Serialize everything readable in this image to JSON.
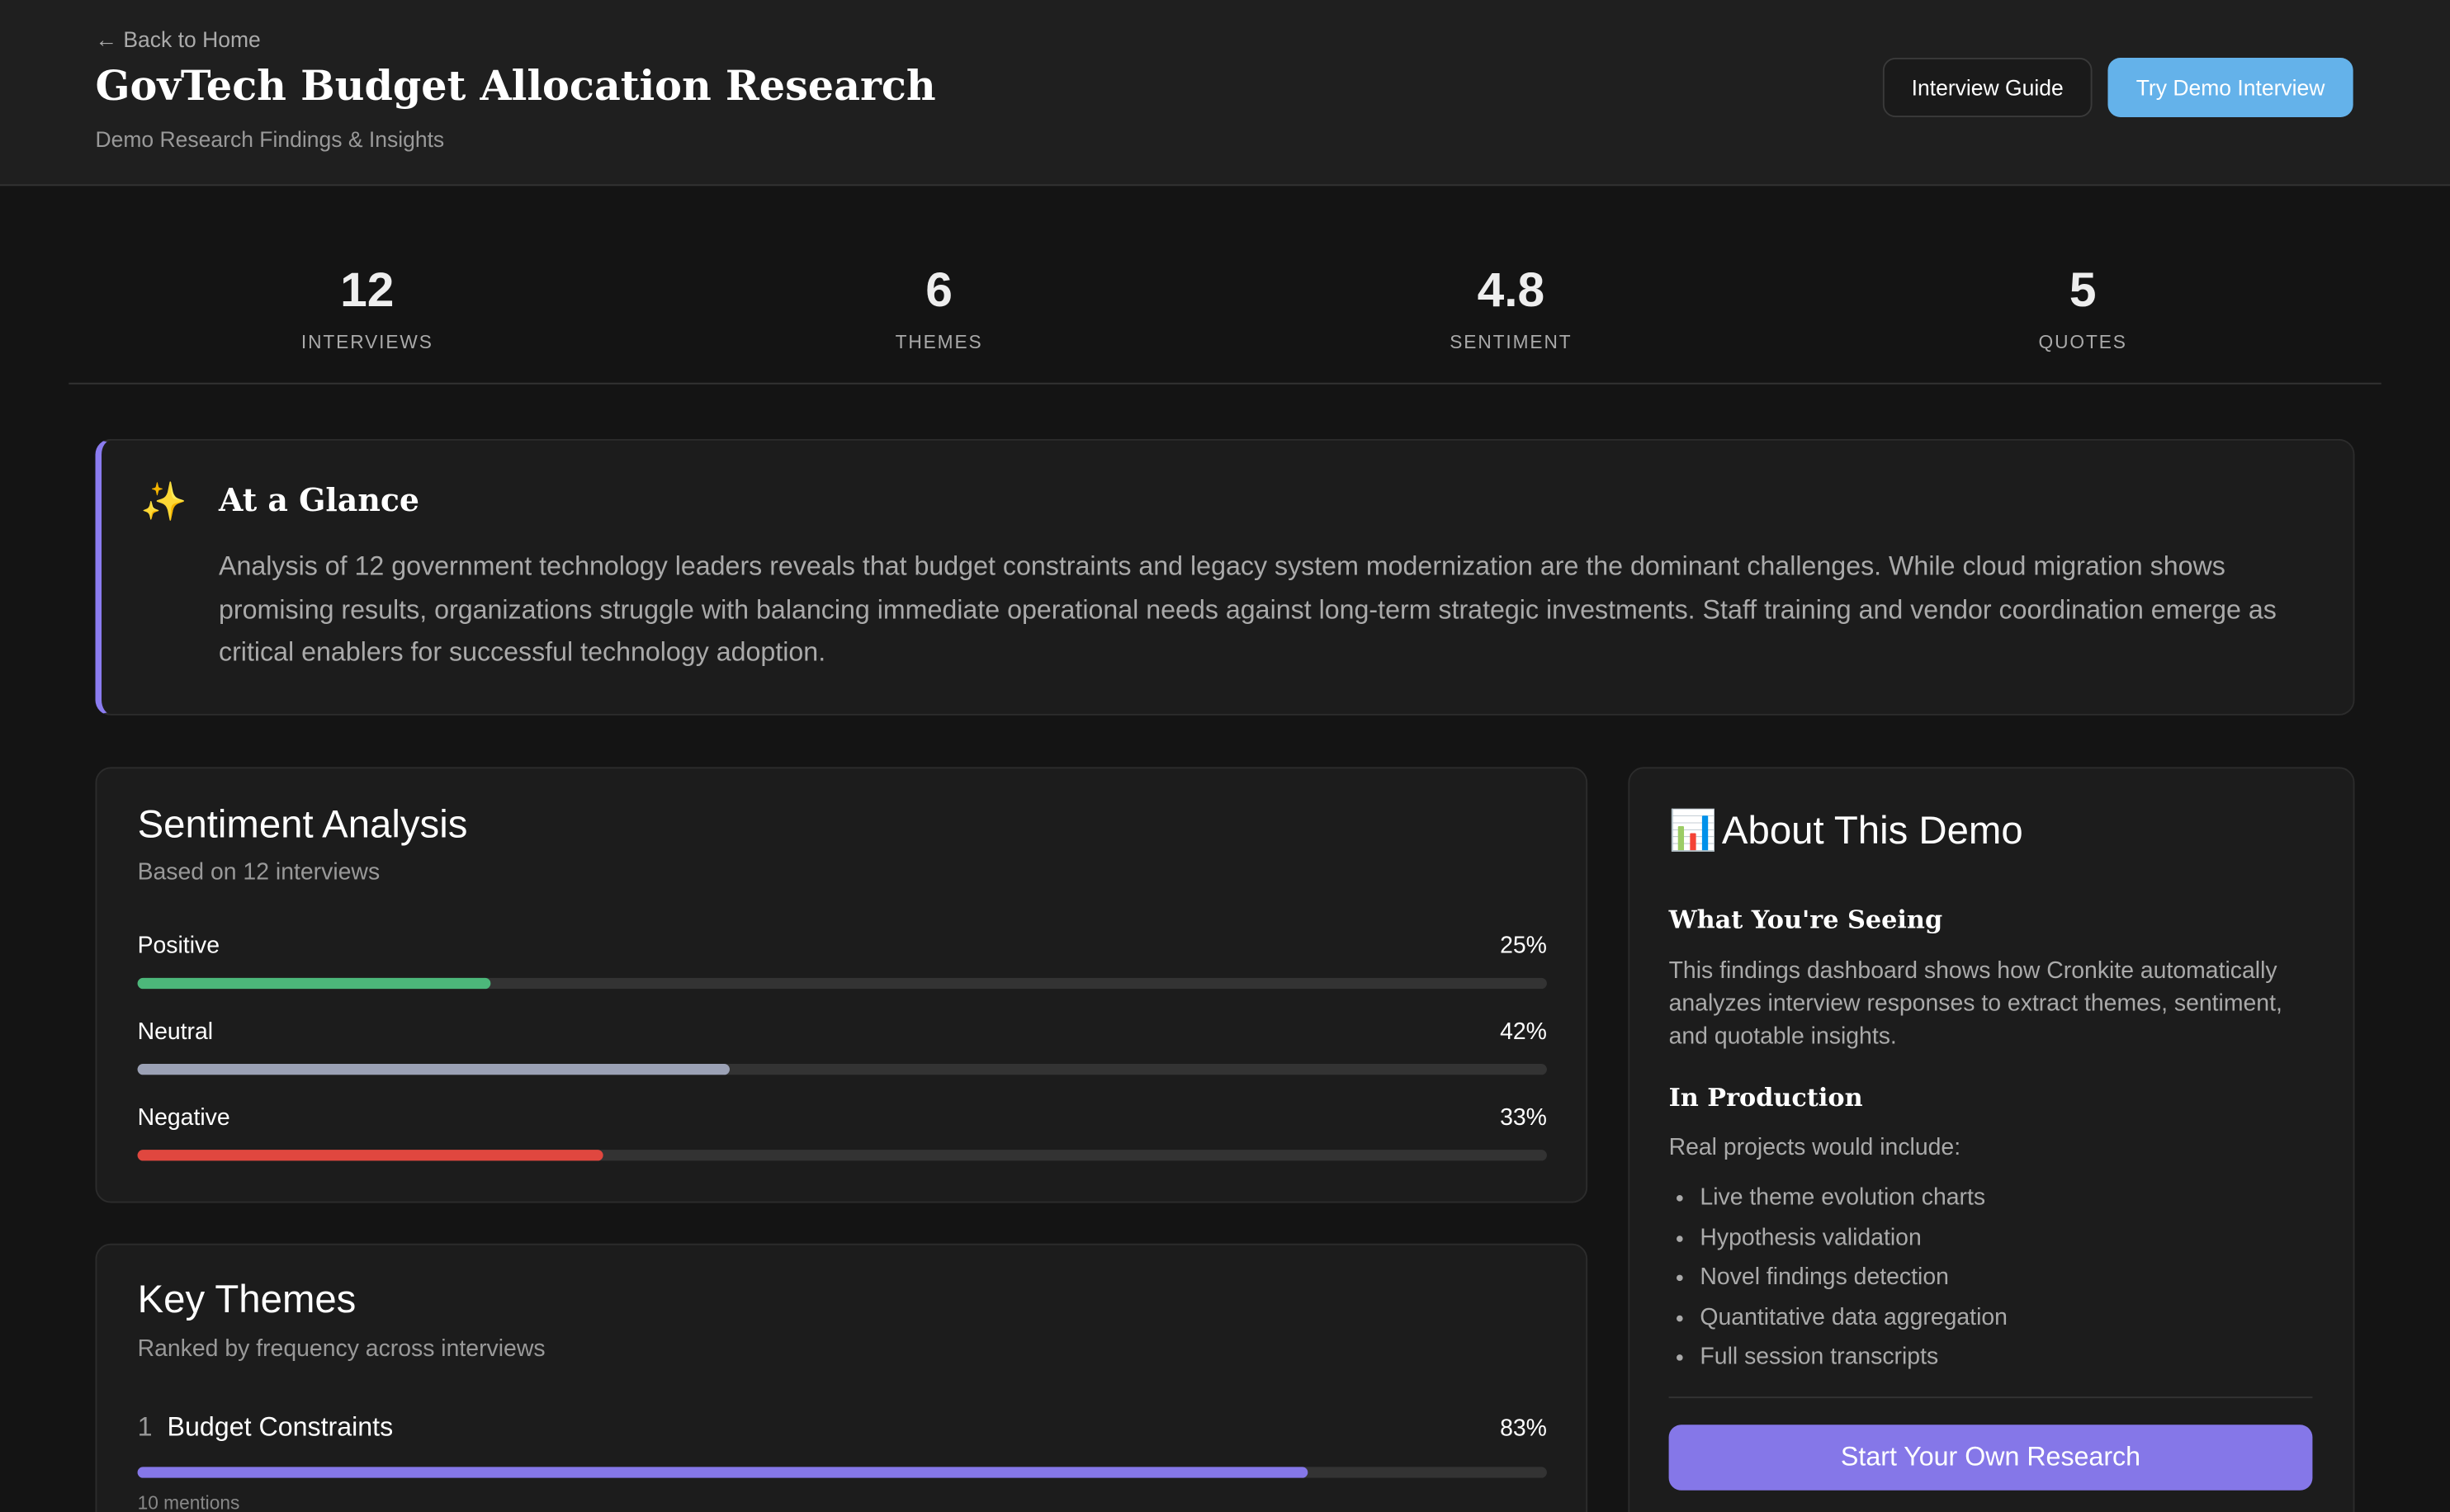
{
  "header": {
    "back_link": "← Back to Home",
    "title": "GovTech Budget Allocation Research",
    "subtitle": "Demo Research Findings & Insights",
    "buttons": [
      "Interview Guide",
      "Try Demo Interview"
    ]
  },
  "stats": [
    {
      "value": 12,
      "label": "INTERVIEWS"
    },
    {
      "value": 6,
      "label": "THEMES"
    },
    {
      "value": 4.8,
      "label": "SENTIMENT"
    },
    {
      "value": 5,
      "label": "QUOTES"
    }
  ],
  "glance": {
    "title": "At a Glance",
    "text": "Analysis of 12 government technology leaders reveals that budget constraints and legacy system modernization are the dominant challenges. While cloud migration shows promising results, organizations struggle with balancing immediate operational needs against long-term strategic investments. Staff training and vendor coordination emerge as critical enablers for successful technology adoption."
  },
  "sentiment": {
    "title": "Sentiment Analysis",
    "subtitle": "Based on 12 interviews",
    "categories": [
      "Positive",
      "Neutral",
      "Negative"
    ],
    "values": [
      25,
      42,
      33
    ],
    "value_labels": [
      "25%",
      "42%",
      "33%"
    ],
    "colors": [
      "#4cb77a",
      "#9ba1b5",
      "#e0473f"
    ]
  },
  "themes": {
    "title": "Key Themes",
    "subtitle": "Ranked by frequency across interviews",
    "items": [
      {
        "rank": 1,
        "name": "Budget Constraints",
        "value": 83,
        "value_label": "83%",
        "mentions": "10 mentions",
        "color": "#8577e8"
      }
    ]
  },
  "about": {
    "title": "About This Demo",
    "section1_title": "What You're Seeing",
    "section1_text": "This findings dashboard shows how Cronkite automatically analyzes interview responses to extract themes, sentiment, and quotable insights.",
    "section2_title": "In Production",
    "section2_intro": "Real projects would include:",
    "list": [
      "Live theme evolution charts",
      "Hypothesis validation",
      "Novel findings detection",
      "Quantitative data aggregation",
      "Full session transcripts"
    ],
    "button": "Start Your Own Research"
  }
}
